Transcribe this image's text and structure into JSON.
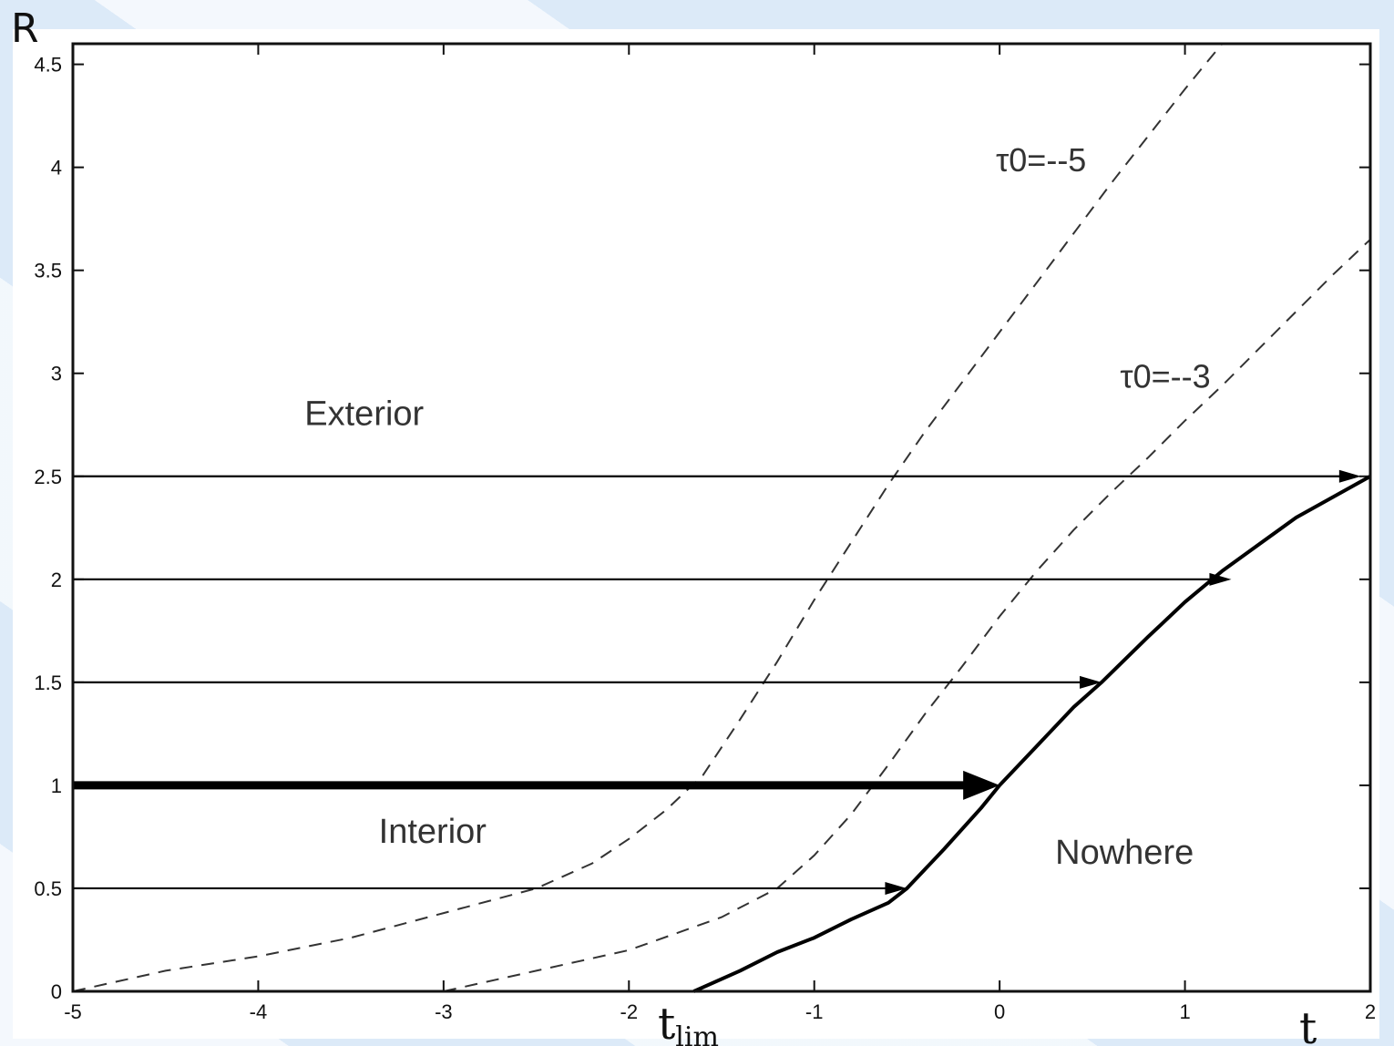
{
  "chart_data": {
    "type": "line",
    "title": "",
    "xlabel": "t",
    "ylabel": "R",
    "xlim": [
      -5,
      2
    ],
    "ylim": [
      0,
      4.6
    ],
    "x_ticks": [
      "-5",
      "-4",
      "-3",
      "-2",
      "-1",
      "0",
      "1",
      "2"
    ],
    "y_ticks": [
      "0",
      "0.5",
      "1",
      "1.5",
      "2",
      "2.5",
      "3",
      "3.5",
      "4",
      "4.5"
    ],
    "x_annotation": {
      "base": "t",
      "sub": "lim",
      "x": -1.65
    },
    "region_labels": [
      {
        "text": "Exterior",
        "x": -3.75,
        "y": 2.75
      },
      {
        "text": "Interior",
        "x": -3.35,
        "y": 0.72
      },
      {
        "text": "Nowhere",
        "x": 0.3,
        "y": 0.62
      }
    ],
    "dashed_series": [
      {
        "name": "τ0=--5",
        "label_pos": {
          "x": -0.02,
          "y": 3.98
        },
        "x": [
          -5.0,
          -4.5,
          -4.0,
          -3.5,
          -3.0,
          -2.5,
          -2.2,
          -2.0,
          -1.8,
          -1.6,
          -1.4,
          -1.2,
          -1.0,
          -0.8,
          -0.6,
          -0.4,
          -0.2,
          0.0,
          0.2,
          0.4,
          0.6,
          0.8,
          1.0,
          1.2,
          1.6
        ],
        "y": [
          0.0,
          0.1,
          0.17,
          0.26,
          0.38,
          0.5,
          0.62,
          0.74,
          0.88,
          1.05,
          1.32,
          1.6,
          1.9,
          2.18,
          2.46,
          2.72,
          2.96,
          3.2,
          3.44,
          3.68,
          3.92,
          4.15,
          4.38,
          4.6,
          5.0
        ]
      },
      {
        "name": "τ0=--3",
        "label_pos": {
          "x": 0.65,
          "y": 2.93
        },
        "x": [
          -3.0,
          -2.5,
          -2.0,
          -1.5,
          -1.2,
          -1.0,
          -0.8,
          -0.6,
          -0.4,
          -0.2,
          0.0,
          0.2,
          0.4,
          0.6,
          0.8,
          1.0,
          1.2,
          1.4,
          1.6,
          1.8,
          2.0
        ],
        "y": [
          0.0,
          0.1,
          0.2,
          0.36,
          0.5,
          0.66,
          0.86,
          1.1,
          1.35,
          1.58,
          1.82,
          2.04,
          2.24,
          2.42,
          2.59,
          2.77,
          2.94,
          3.12,
          3.3,
          3.48,
          3.65
        ]
      }
    ],
    "boundary_series": {
      "name": "",
      "x": [
        -1.65,
        -1.4,
        -1.2,
        -1.0,
        -0.8,
        -0.6,
        -0.5,
        -0.3,
        -0.1,
        0.0,
        0.2,
        0.4,
        0.55,
        0.8,
        1.0,
        1.2,
        1.4,
        1.6,
        1.8,
        2.0
      ],
      "y": [
        0.0,
        0.1,
        0.19,
        0.26,
        0.35,
        0.43,
        0.5,
        0.69,
        0.89,
        1.0,
        1.19,
        1.38,
        1.5,
        1.72,
        1.89,
        2.04,
        2.17,
        2.3,
        2.4,
        2.5
      ]
    },
    "horizontal_arrows": [
      {
        "y": 0.5,
        "x_start": -5,
        "x_end": -0.5,
        "bold": false
      },
      {
        "y": 1.0,
        "x_start": -5,
        "x_end": 0.0,
        "bold": true
      },
      {
        "y": 1.5,
        "x_start": -5,
        "x_end": 0.55,
        "bold": false
      },
      {
        "y": 2.0,
        "x_start": -5,
        "x_end": 1.25,
        "bold": false
      },
      {
        "y": 2.5,
        "x_start": -5,
        "x_end": 1.95,
        "bold": false
      }
    ]
  }
}
